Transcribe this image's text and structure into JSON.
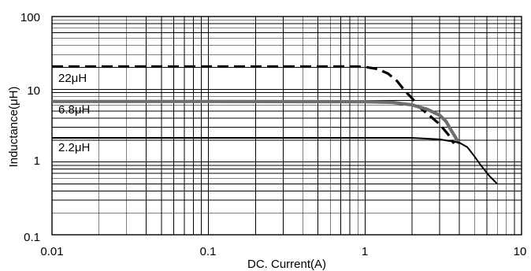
{
  "chart_data": {
    "type": "line",
    "title": "",
    "xlabel": "DC. Current(A)",
    "ylabel": "Inductance(μH)",
    "xscale": "log",
    "yscale": "log",
    "xlim": [
      0.01,
      10
    ],
    "ylim": [
      0.1,
      100
    ],
    "grid": true,
    "x_tick_labels": [
      "0.01",
      "0.1",
      "1",
      "10"
    ],
    "y_tick_labels": [
      "0.1",
      "1",
      "10",
      "100"
    ],
    "series": [
      {
        "name": "22μH",
        "style": "dashed",
        "color": "#000000",
        "points": [
          [
            0.01,
            20.5
          ],
          [
            0.1,
            20.5
          ],
          [
            0.9,
            20.5
          ],
          [
            1.0,
            20.3
          ],
          [
            1.2,
            19.0
          ],
          [
            1.4,
            16.5
          ],
          [
            1.6,
            13.0
          ],
          [
            1.8,
            9.5
          ],
          [
            2.0,
            7.5
          ],
          [
            2.2,
            5.8
          ],
          [
            2.6,
            4.3
          ],
          [
            3.0,
            3.3
          ],
          [
            3.4,
            2.4
          ],
          [
            3.7,
            1.8
          ]
        ]
      },
      {
        "name": "6.8μH",
        "style": "solid-thick",
        "color": "#6e6e6e",
        "points": [
          [
            0.01,
            6.8
          ],
          [
            0.1,
            6.8
          ],
          [
            1.0,
            6.75
          ],
          [
            1.5,
            6.6
          ],
          [
            2.0,
            6.1
          ],
          [
            2.5,
            5.3
          ],
          [
            3.0,
            4.4
          ],
          [
            3.3,
            3.6
          ],
          [
            3.6,
            2.6
          ],
          [
            4.0,
            1.8
          ]
        ]
      },
      {
        "name": "2.2μH",
        "style": "solid",
        "color": "#000000",
        "points": [
          [
            0.01,
            2.15
          ],
          [
            0.1,
            2.15
          ],
          [
            1.0,
            2.15
          ],
          [
            2.0,
            2.15
          ],
          [
            3.0,
            2.05
          ],
          [
            4.0,
            1.85
          ],
          [
            4.5,
            1.6
          ],
          [
            5.0,
            1.2
          ],
          [
            5.5,
            0.9
          ],
          [
            6.2,
            0.65
          ],
          [
            7.0,
            0.5
          ]
        ]
      }
    ]
  }
}
